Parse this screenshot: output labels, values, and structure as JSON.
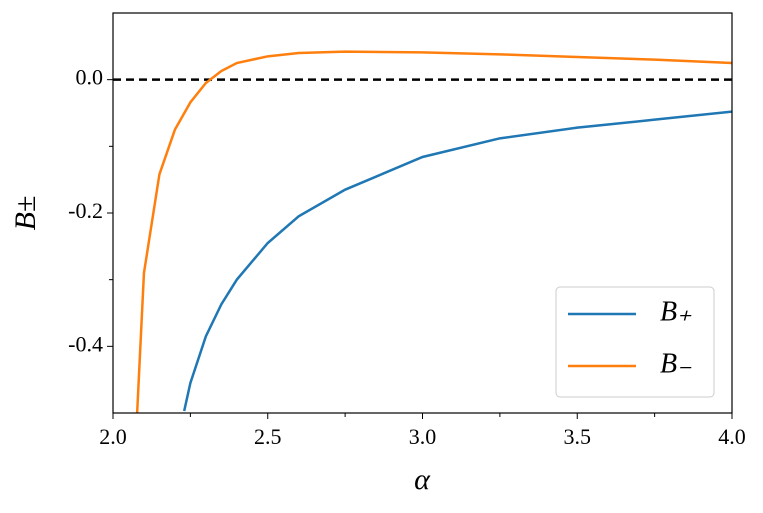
{
  "chart_data": {
    "type": "line",
    "xlabel": "α",
    "ylabel": "B±",
    "xlim": [
      2.0,
      4.0
    ],
    "ylim": [
      -0.5,
      0.1
    ],
    "xticks": [
      {
        "value": 2.0,
        "label": "2.0"
      },
      2.5,
      {
        "value": 3.0,
        "label": "3.0"
      },
      3.5,
      {
        "value": 4.0,
        "label": "4.0"
      }
    ],
    "xminor_ticks": [
      2.25,
      2.75,
      3.25,
      3.75
    ],
    "yticks": [
      {
        "value": 0,
        "label": "0.0"
      },
      -0.2,
      -0.4
    ],
    "yminor_ticks": [
      -0.3,
      -0.1
    ],
    "hline": {
      "y": 0,
      "color": "#000000",
      "dashed": true
    },
    "legend": "lower right",
    "series": [
      {
        "name": "B₊",
        "color": "#1f77b4",
        "x": [
          2.23,
          2.25,
          2.3,
          2.35,
          2.4,
          2.5,
          2.6,
          2.75,
          3.0,
          3.25,
          3.5,
          3.75,
          4.0
        ],
        "values": [
          -0.497,
          -0.455,
          -0.385,
          -0.337,
          -0.3,
          -0.245,
          -0.205,
          -0.165,
          -0.116,
          -0.088,
          -0.072,
          -0.06,
          -0.048
        ]
      },
      {
        "name": "B₋",
        "color": "#ff7f0e",
        "x": [
          2.078,
          2.1,
          2.15,
          2.2,
          2.25,
          2.3,
          2.35,
          2.4,
          2.5,
          2.6,
          2.75,
          3.0,
          3.25,
          3.5,
          3.75,
          4.0
        ],
        "values": [
          -0.5,
          -0.29,
          -0.142,
          -0.075,
          -0.034,
          -0.005,
          0.013,
          0.025,
          0.035,
          0.04,
          0.042,
          0.041,
          0.038,
          0.034,
          0.03,
          0.025
        ]
      }
    ]
  }
}
